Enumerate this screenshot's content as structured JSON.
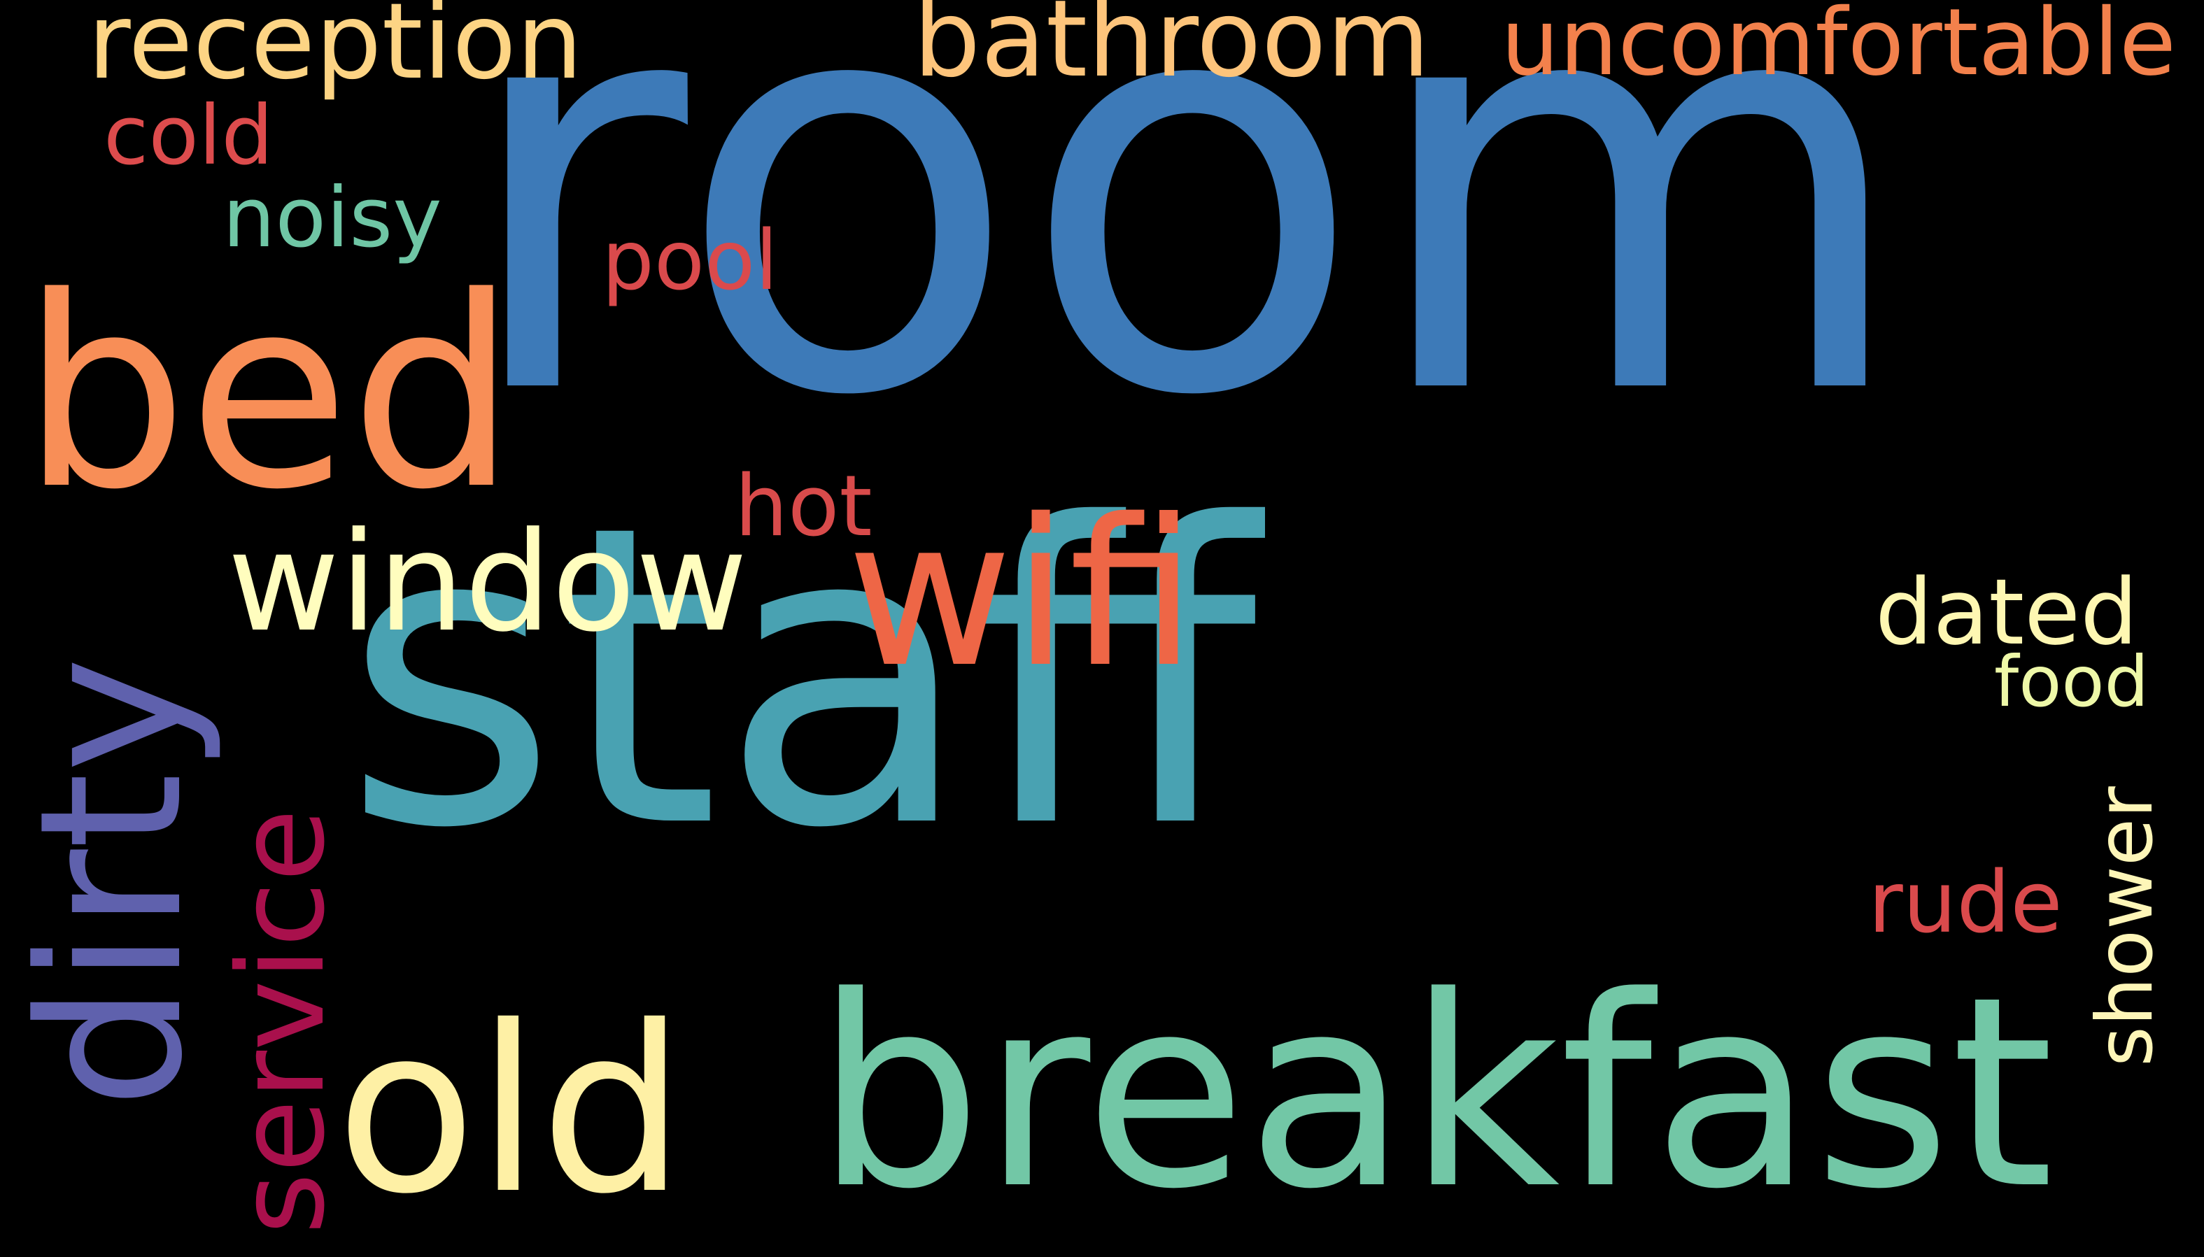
{
  "background": "#000000",
  "words": {
    "room": {
      "text": "room",
      "color": "#3D7AB8"
    },
    "staff": {
      "text": "staff",
      "color": "#49A2B2"
    },
    "breakfast": {
      "text": "breakfast",
      "color": "#72C7A6"
    },
    "bed": {
      "text": "bed",
      "color": "#F88E57"
    },
    "dirty": {
      "text": "dirty",
      "color": "#5F61AD"
    },
    "wifi": {
      "text": "wifi",
      "color": "#EE6646"
    },
    "old": {
      "text": "old",
      "color": "#FEF0A5"
    },
    "window": {
      "text": "window",
      "color": "#FFFDBE"
    },
    "service": {
      "text": "service",
      "color": "#A9104C"
    },
    "bathroom": {
      "text": "bathroom",
      "color": "#FDC47B"
    },
    "reception": {
      "text": "reception",
      "color": "#FDD484"
    },
    "uncomfortable": {
      "text": "uncomfortable",
      "color": "#F3814C"
    },
    "cold": {
      "text": "cold",
      "color": "#DD4C4D"
    },
    "noisy": {
      "text": "noisy",
      "color": "#6FC6A5"
    },
    "pool": {
      "text": "pool",
      "color": "#DA4A4C"
    },
    "hot": {
      "text": "hot",
      "color": "#D94B4B"
    },
    "dated": {
      "text": "dated",
      "color": "#FEF7B2"
    },
    "food": {
      "text": "food",
      "color": "#EEF8A8"
    },
    "shower": {
      "text": "shower",
      "color": "#FEF6B8"
    },
    "rude": {
      "text": "rude",
      "color": "#DA4A4C"
    }
  }
}
